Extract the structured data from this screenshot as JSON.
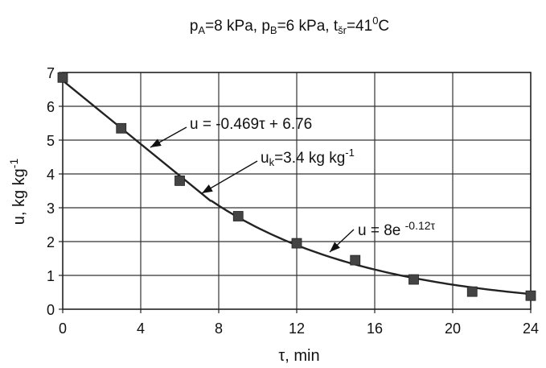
{
  "chart_data": {
    "type": "scatter",
    "title": {
      "p_a": "p",
      "p_a_sub": "A",
      "p_a_val": "=8 kPa, ",
      "p_b": "p",
      "p_b_sub": "B",
      "p_b_val": "=6 kPa, ",
      "t": "t",
      "t_sub": "šr",
      "t_val": "=41",
      "t_sup": "0",
      "t_unit": "C"
    },
    "xlabel": "τ, min",
    "ylabel": "u, kg kg",
    "ylabel_sup": "-1",
    "xlim": [
      0,
      24
    ],
    "ylim": [
      0,
      7
    ],
    "xticks": [
      "0",
      "4",
      "8",
      "12",
      "16",
      "20",
      "24"
    ],
    "yticks": [
      "0",
      "1",
      "2",
      "3",
      "4",
      "5",
      "6",
      "7"
    ],
    "grid": true,
    "points": [
      {
        "x": 0,
        "y": 6.85
      },
      {
        "x": 3,
        "y": 5.35
      },
      {
        "x": 6,
        "y": 3.8
      },
      {
        "x": 9,
        "y": 2.75
      },
      {
        "x": 12,
        "y": 1.95
      },
      {
        "x": 15,
        "y": 1.45
      },
      {
        "x": 18,
        "y": 0.88
      },
      {
        "x": 21,
        "y": 0.52
      },
      {
        "x": 24,
        "y": 0.4
      }
    ],
    "linear_fit": {
      "slope": -0.469,
      "intercept": 6.76,
      "x_range": [
        0,
        7.6
      ]
    },
    "exp_fit": {
      "a": 8,
      "b": -0.12,
      "x_range": [
        7.6,
        24
      ]
    },
    "annotations": {
      "linear": {
        "text": "u = -0.469τ + 6.76"
      },
      "critical": {
        "prefix": "u",
        "sub": "k",
        "mid": "=3.4 kg kg",
        "sup": "-1"
      },
      "exponential": {
        "prefix": "u = 8e ",
        "sup": "-0.12τ"
      }
    },
    "colors": {
      "line": "#222222",
      "marker": "#444444",
      "grid": "#333333"
    }
  }
}
